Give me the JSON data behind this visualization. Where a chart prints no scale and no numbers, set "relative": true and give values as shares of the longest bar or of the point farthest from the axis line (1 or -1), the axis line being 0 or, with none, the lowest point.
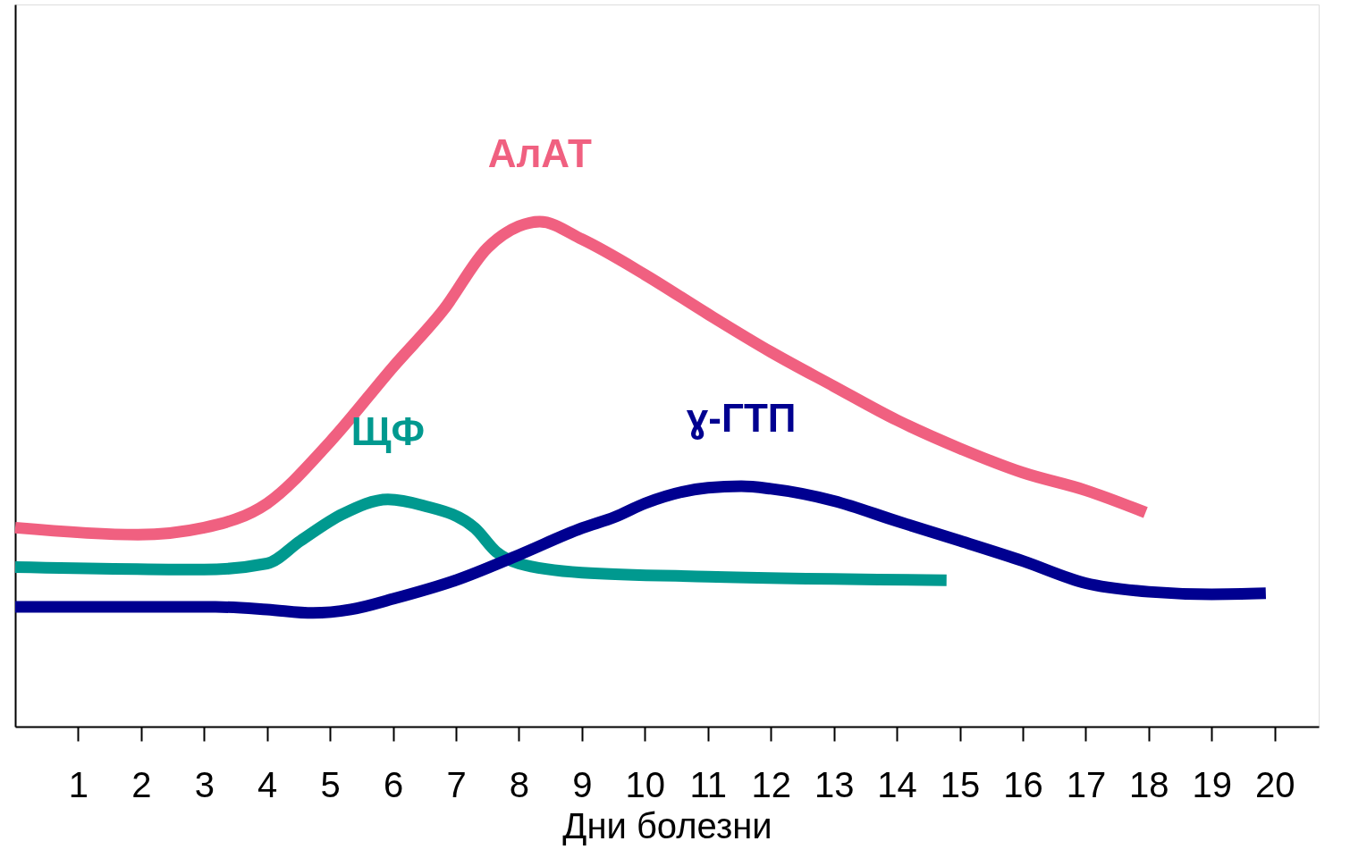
{
  "chart_data": {
    "type": "line",
    "relative": true,
    "xlabel": "Дни болезни",
    "xlim": [
      0,
      20.7
    ],
    "xticks": [
      1,
      2,
      3,
      4,
      5,
      6,
      7,
      8,
      9,
      10,
      11,
      12,
      13,
      14,
      15,
      16,
      17,
      18,
      19,
      20
    ],
    "grid": false,
    "marker": "none",
    "line_style": "solid",
    "series": [
      {
        "name": "АлАТ",
        "color": "#f06080",
        "x": [
          0,
          1.95,
          3,
          4,
          5,
          6,
          6.8,
          7.5,
          8,
          8.33,
          9,
          10,
          11,
          12,
          13,
          14,
          15,
          16,
          17,
          17.95
        ],
        "values": [
          0.394,
          0.38,
          0.394,
          0.442,
          0.564,
          0.712,
          0.825,
          0.948,
          0.991,
          1.0,
          0.965,
          0.895,
          0.817,
          0.742,
          0.674,
          0.607,
          0.551,
          0.503,
          0.468,
          0.424
        ]
      },
      {
        "name": "ЩФ",
        "color": "#00998f",
        "x": [
          0,
          3,
          4,
          4.53,
          5.2,
          5.92,
          6.47,
          7.3,
          7.64,
          8,
          9,
          11,
          14.79
        ],
        "values": [
          0.316,
          0.311,
          0.323,
          0.368,
          0.421,
          0.45,
          0.438,
          0.393,
          0.346,
          0.323,
          0.305,
          0.297,
          0.29
        ]
      },
      {
        "name": "ɣ-ГТП",
        "color": "#000090",
        "x": [
          0,
          3.18,
          4,
          4.73,
          5.33,
          6,
          7,
          8,
          9,
          9.52,
          10,
          11,
          11.53,
          12,
          13,
          14,
          15,
          16,
          17,
          18,
          19,
          19.86
        ],
        "values": [
          0.237,
          0.237,
          0.232,
          0.225,
          0.232,
          0.253,
          0.29,
          0.34,
          0.393,
          0.415,
          0.442,
          0.473,
          0.476,
          0.471,
          0.447,
          0.407,
          0.368,
          0.328,
          0.284,
          0.267,
          0.262,
          0.264
        ]
      }
    ]
  }
}
